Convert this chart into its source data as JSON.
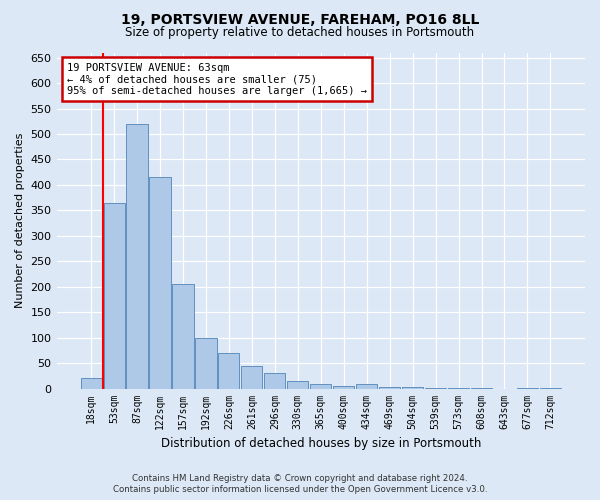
{
  "title": "19, PORTSVIEW AVENUE, FAREHAM, PO16 8LL",
  "subtitle": "Size of property relative to detached houses in Portsmouth",
  "xlabel": "Distribution of detached houses by size in Portsmouth",
  "ylabel": "Number of detached properties",
  "categories": [
    "18sqm",
    "53sqm",
    "87sqm",
    "122sqm",
    "157sqm",
    "192sqm",
    "226sqm",
    "261sqm",
    "296sqm",
    "330sqm",
    "365sqm",
    "400sqm",
    "434sqm",
    "469sqm",
    "504sqm",
    "539sqm",
    "573sqm",
    "608sqm",
    "643sqm",
    "677sqm",
    "712sqm"
  ],
  "bar_heights": [
    20,
    365,
    520,
    415,
    205,
    100,
    70,
    45,
    30,
    15,
    8,
    5,
    8,
    3,
    3,
    1,
    1,
    1,
    0,
    1,
    1
  ],
  "bar_color": "#aec9e8",
  "bar_edge_color": "#6090c0",
  "red_line_x": 0.5,
  "annotation_line1": "19 PORTSVIEW AVENUE: 63sqm",
  "annotation_line2": "← 4% of detached houses are smaller (75)",
  "annotation_line3": "95% of semi-detached houses are larger (1,665) →",
  "annotation_box_facecolor": "#ffffff",
  "annotation_box_edgecolor": "#cc0000",
  "footer_line1": "Contains HM Land Registry data © Crown copyright and database right 2024.",
  "footer_line2": "Contains public sector information licensed under the Open Government Licence v3.0.",
  "bg_color": "#dce8f5",
  "ylim": [
    0,
    660
  ],
  "yticks": [
    0,
    50,
    100,
    150,
    200,
    250,
    300,
    350,
    400,
    450,
    500,
    550,
    600,
    650
  ]
}
